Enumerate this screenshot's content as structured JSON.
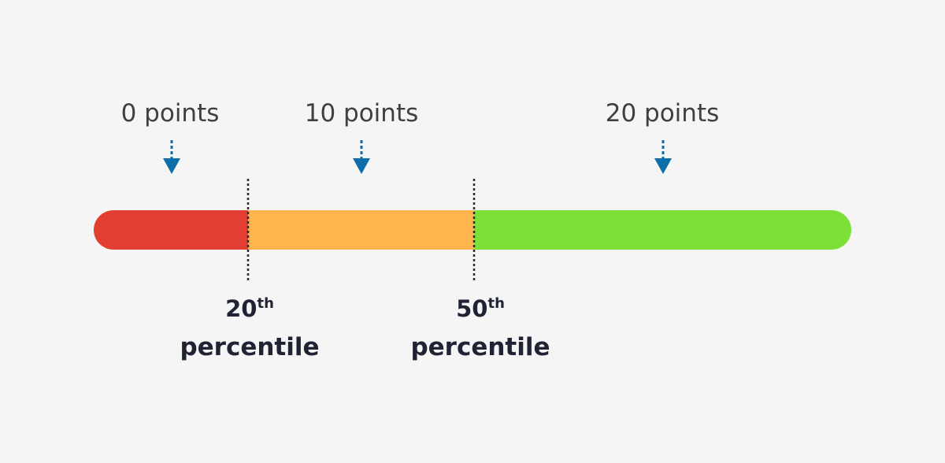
{
  "scale": {
    "segments": [
      {
        "from_percentile": 0,
        "to_percentile": 20,
        "color": "#e33e32"
      },
      {
        "from_percentile": 20,
        "to_percentile": 50,
        "color": "#ffb44d"
      },
      {
        "from_percentile": 50,
        "to_percentile": 100,
        "color": "#7ce036"
      }
    ],
    "arrow_color": "#0c6ea8",
    "divider_color": "#2a2a2a"
  },
  "point_labels": [
    {
      "text": "0 points"
    },
    {
      "text": "10 points"
    },
    {
      "text": "20 points"
    }
  ],
  "thresholds": [
    {
      "number": "20",
      "suffix": "th",
      "word": "percentile"
    },
    {
      "number": "50",
      "suffix": "th",
      "word": "percentile"
    }
  ]
}
